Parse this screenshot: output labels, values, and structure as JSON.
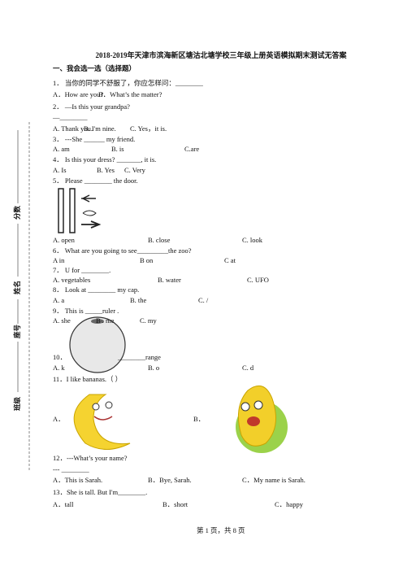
{
  "header": {
    "title": "2018-2019年天津市滨海新区塘沽北塘学校三年级上册英语模拟期末测试无答案"
  },
  "section": "一、我会选一选（选择题）",
  "sidebar": [
    "分数",
    "姓名",
    "座号",
    "班级"
  ],
  "questions": [
    {
      "stem": "1． 当你的同学不舒服了，你应怎样问：________",
      "options": [
        "A．How are you?",
        "B．What’s the matter?"
      ]
    },
    {
      "stem": "2． —Is this your grandpa?",
      "answer": "—________",
      "options": [
        "A. Thank you.",
        "B. I'm nine.",
        "C. Yes，it is."
      ]
    },
    {
      "stem": "3． ---She ______ my friend.",
      "options": [
        "A. am",
        "B. is",
        "C.are"
      ]
    },
    {
      "stem": "4． Is this your dress? _______, it is.",
      "options": [
        "A. Is",
        "B. Yes",
        "C. Very"
      ]
    },
    {
      "stem": "5． Please ________ the door.",
      "options": [
        "A. open",
        "B. close",
        "C. look"
      ]
    },
    {
      "stem": "6． What are you going to see_________the zoo?",
      "options": [
        "A in",
        "B on",
        "C at"
      ]
    },
    {
      "stem": "7． U for ________.",
      "options": [
        "A. vegetables",
        "B. water",
        "C. UFO"
      ]
    },
    {
      "stem": "8． Look at ________ my cap.",
      "options": [
        "A. a",
        "B. the",
        "C. /"
      ]
    },
    {
      "stem": "9． This is _____ruler .",
      "options": [
        "A. she",
        "B . me",
        "C. my"
      ]
    },
    {
      "stem": "10．",
      "blank": "________range",
      "options": [
        "A. k",
        "B. o",
        "C. d"
      ]
    },
    {
      "stem": "11．I like bananas.（        ）",
      "options": [
        "A．",
        "B．"
      ]
    },
    {
      "stem": "12．---What’s your name?",
      "answer": "--- ________",
      "options": [
        "A．This is Sarah.",
        "B．Bye, Sarah.",
        "C．My name is Sarah."
      ]
    },
    {
      "stem": "13．She is tall. But I'm________.",
      "options": [
        "A．tall",
        "B．short",
        "C．happy"
      ]
    }
  ],
  "footer": "第 1 页，共 8 页"
}
